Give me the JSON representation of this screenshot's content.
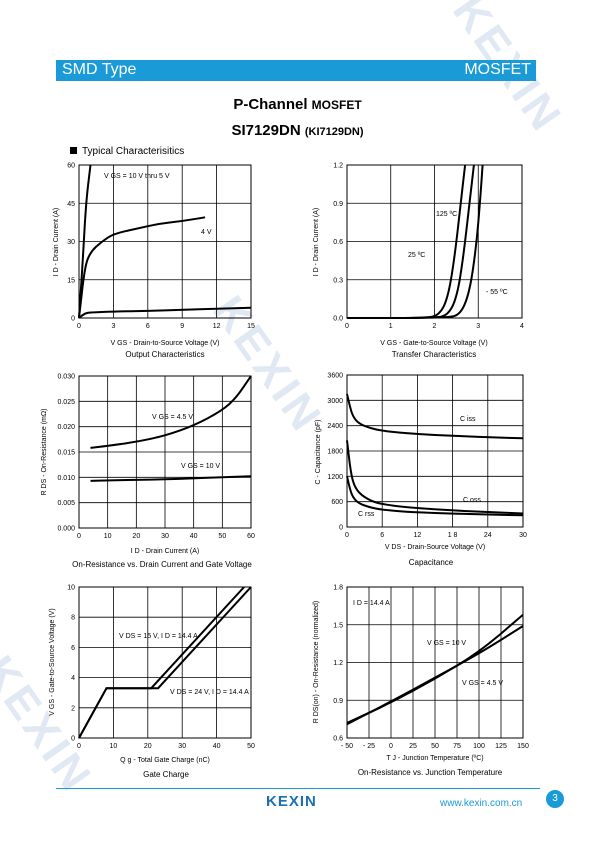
{
  "header": {
    "left": "SMD Type",
    "right": "MOSFET"
  },
  "title": {
    "main": "P-Channel",
    "main_sub": "MOSFET",
    "part": "SI7129DN",
    "part_sub": "(KI7129DN)"
  },
  "section": "Typical  Characterisitics",
  "footer": {
    "logo": "KEXIN",
    "site": "www.kexin.com.cn",
    "page": "3"
  },
  "charts": {
    "output": {
      "title": "Output Characteristics",
      "xlabel": "V GS - Drain-to-Source Voltage (V)",
      "ylabel": "I D - Drain Current (A)",
      "xticks": [
        "0",
        "3",
        "6",
        "9",
        "12",
        "15"
      ],
      "yticks": [
        "0",
        "15",
        "30",
        "45",
        "60"
      ],
      "label_a": "V GS = 10 V thru 5 V",
      "label_b": "4 V"
    },
    "transfer": {
      "title": "Transfer Characteristics",
      "xlabel": "V GS - Gate-to-Source Voltage (V)",
      "ylabel": "I D - Drain Current (A)",
      "xticks": [
        "0",
        "1",
        "2",
        "3",
        "4"
      ],
      "yticks": [
        "0.0",
        "0.3",
        "0.6",
        "0.9",
        "1.2"
      ],
      "label_a": "125 ºC",
      "label_b": "25 ºC",
      "label_c": "- 55 ºC"
    },
    "onres": {
      "title": "On-Resistance vs. Drain Current and Gate Voltage",
      "xlabel": "I D - Drain Current (A)",
      "ylabel": "R DS - On-Resistance  (mΩ)",
      "xticks": [
        "0",
        "10",
        "20",
        "30",
        "40",
        "50",
        "60"
      ],
      "yticks": [
        "0.000",
        "0.005",
        "0.010",
        "0.015",
        "0.020",
        "0.025",
        "0.030"
      ],
      "label_a": "V GS = 4.5 V",
      "label_b": "V GS = 10 V"
    },
    "cap": {
      "title": "Capacitance",
      "xlabel": "V DS - Drain-Source Voltage (V)",
      "ylabel": "C - Capacitance (pF)",
      "xticks": [
        "0",
        "6",
        "12",
        "1 8",
        "24",
        "30"
      ],
      "yticks": [
        "0",
        "600",
        "1200",
        "1800",
        "2400",
        "3000",
        "3600"
      ],
      "label_a": "C iss",
      "label_b": "C oss",
      "label_c": "C rss"
    },
    "gate": {
      "title": "Gate Charge",
      "xlabel": "Q g - Total Gate Charge (nC)",
      "ylabel": "V GS - Gate-to-Source Voltage (V)",
      "xticks": [
        "0",
        "10",
        "20",
        "30",
        "40",
        "50"
      ],
      "yticks": [
        "0",
        "2",
        "4",
        "6",
        "8",
        "10"
      ],
      "label_a": "V DS = 15 V, I D = 14.4 A",
      "label_b": "V DS = 24 V, I D = 14.4 A"
    },
    "temp": {
      "title": "On-Resistance vs. Junction Temperature",
      "xlabel": "T J - Junction Temperature (ºC)",
      "ylabel": "R DS(on) - On-Resistance (normalized)",
      "xticks": [
        "- 50",
        "- 25",
        "0",
        "25",
        "50",
        "75",
        "100",
        "125",
        "150"
      ],
      "yticks": [
        "0.6",
        "0.9",
        "1.2",
        "1.5",
        "1.8"
      ],
      "label_a": "I D = 14.4 A",
      "label_b": "V GS = 10 V",
      "label_c": "V GS = 4.5 V"
    }
  },
  "chart_data": [
    {
      "type": "line",
      "title": "Output Characteristics",
      "xlim": [
        0,
        15
      ],
      "ylim": [
        0,
        60
      ],
      "series": [
        {
          "name": "V GS = 10 V thru 5 V",
          "x": [
            0,
            0.3,
            0.6,
            1.0
          ],
          "y": [
            0,
            20,
            45,
            60
          ]
        },
        {
          "name": "4 V",
          "x": [
            0,
            0.5,
            1,
            2,
            3,
            5,
            7,
            9,
            11
          ],
          "y": [
            0,
            20,
            26,
            30,
            33,
            35,
            37,
            38,
            39.5
          ]
        },
        {
          "name": "",
          "x": [
            0,
            0.5,
            1,
            3,
            6,
            9,
            12,
            15
          ],
          "y": [
            0,
            1.8,
            2.2,
            2.5,
            2.8,
            3.2,
            3.6,
            4.0
          ]
        }
      ]
    },
    {
      "type": "line",
      "title": "Transfer Characteristics",
      "xlim": [
        0,
        4
      ],
      "ylim": [
        0,
        1.2
      ],
      "series": [
        {
          "name": "125 ºC",
          "x": [
            0,
            1.8,
            2.1,
            2.3,
            2.45,
            2.6,
            2.7
          ],
          "y": [
            0,
            0,
            0.02,
            0.15,
            0.45,
            0.9,
            1.2
          ]
        },
        {
          "name": "25 ºC",
          "x": [
            0,
            2.0,
            2.3,
            2.5,
            2.65,
            2.8,
            2.9
          ],
          "y": [
            0,
            0,
            0.02,
            0.15,
            0.45,
            0.9,
            1.2
          ]
        },
        {
          "name": "- 55 ºC",
          "x": [
            0,
            2.3,
            2.6,
            2.8,
            2.95,
            3.05,
            3.1
          ],
          "y": [
            0,
            0,
            0.03,
            0.2,
            0.55,
            0.95,
            1.2
          ]
        }
      ]
    },
    {
      "type": "line",
      "title": "On-Resistance vs. Drain Current and Gate Voltage",
      "xlim": [
        0,
        60
      ],
      "ylim": [
        0,
        0.03
      ],
      "series": [
        {
          "name": "V GS = 4.5 V",
          "x": [
            4,
            10,
            20,
            30,
            40,
            50,
            55,
            60
          ],
          "y": [
            0.0158,
            0.0162,
            0.017,
            0.0182,
            0.0202,
            0.0232,
            0.0258,
            0.03
          ]
        },
        {
          "name": "V GS = 10 V",
          "x": [
            4,
            10,
            20,
            30,
            40,
            50,
            60
          ],
          "y": [
            0.0093,
            0.0094,
            0.0095,
            0.0096,
            0.0098,
            0.01,
            0.0102
          ]
        }
      ]
    },
    {
      "type": "line",
      "title": "Capacitance",
      "xlim": [
        0,
        30
      ],
      "ylim": [
        0,
        3600
      ],
      "series": [
        {
          "name": "C iss",
          "x": [
            0,
            0.5,
            1,
            2,
            4,
            6,
            10,
            15,
            20,
            25,
            30
          ],
          "y": [
            3150,
            2850,
            2620,
            2450,
            2340,
            2280,
            2220,
            2180,
            2150,
            2120,
            2100
          ]
        },
        {
          "name": "C oss",
          "x": [
            0,
            0.5,
            1,
            2,
            4,
            6,
            10,
            15,
            20,
            25,
            30
          ],
          "y": [
            2050,
            1450,
            1050,
            800,
            620,
            540,
            470,
            420,
            380,
            350,
            320
          ]
        },
        {
          "name": "C rss",
          "x": [
            0,
            0.5,
            1,
            2,
            4,
            6,
            10,
            15,
            20,
            25,
            30
          ],
          "y": [
            1200,
            900,
            700,
            560,
            460,
            410,
            360,
            330,
            310,
            290,
            280
          ]
        }
      ]
    },
    {
      "type": "line",
      "title": "Gate Charge",
      "xlim": [
        0,
        50
      ],
      "ylim": [
        0,
        10
      ],
      "series": [
        {
          "name": "V DS = 15 V, I D = 14.4 A",
          "x": [
            0,
            8,
            21,
            48
          ],
          "y": [
            0,
            3.3,
            3.3,
            10
          ]
        },
        {
          "name": "V DS = 24 V, I D = 14.4 A",
          "x": [
            0,
            8,
            23,
            50
          ],
          "y": [
            0,
            3.3,
            3.3,
            10
          ]
        }
      ]
    },
    {
      "type": "line",
      "title": "On-Resistance vs. Junction Temperature",
      "xlim": [
        -50,
        150
      ],
      "ylim": [
        0.6,
        1.8
      ],
      "series": [
        {
          "name": "V GS = 10 V",
          "x": [
            -50,
            0,
            50,
            100,
            150
          ],
          "y": [
            0.72,
            0.88,
            1.07,
            1.28,
            1.58
          ]
        },
        {
          "name": "V GS = 4.5 V",
          "x": [
            -50,
            0,
            50,
            100,
            150
          ],
          "y": [
            0.71,
            0.89,
            1.08,
            1.27,
            1.49
          ]
        }
      ]
    }
  ]
}
